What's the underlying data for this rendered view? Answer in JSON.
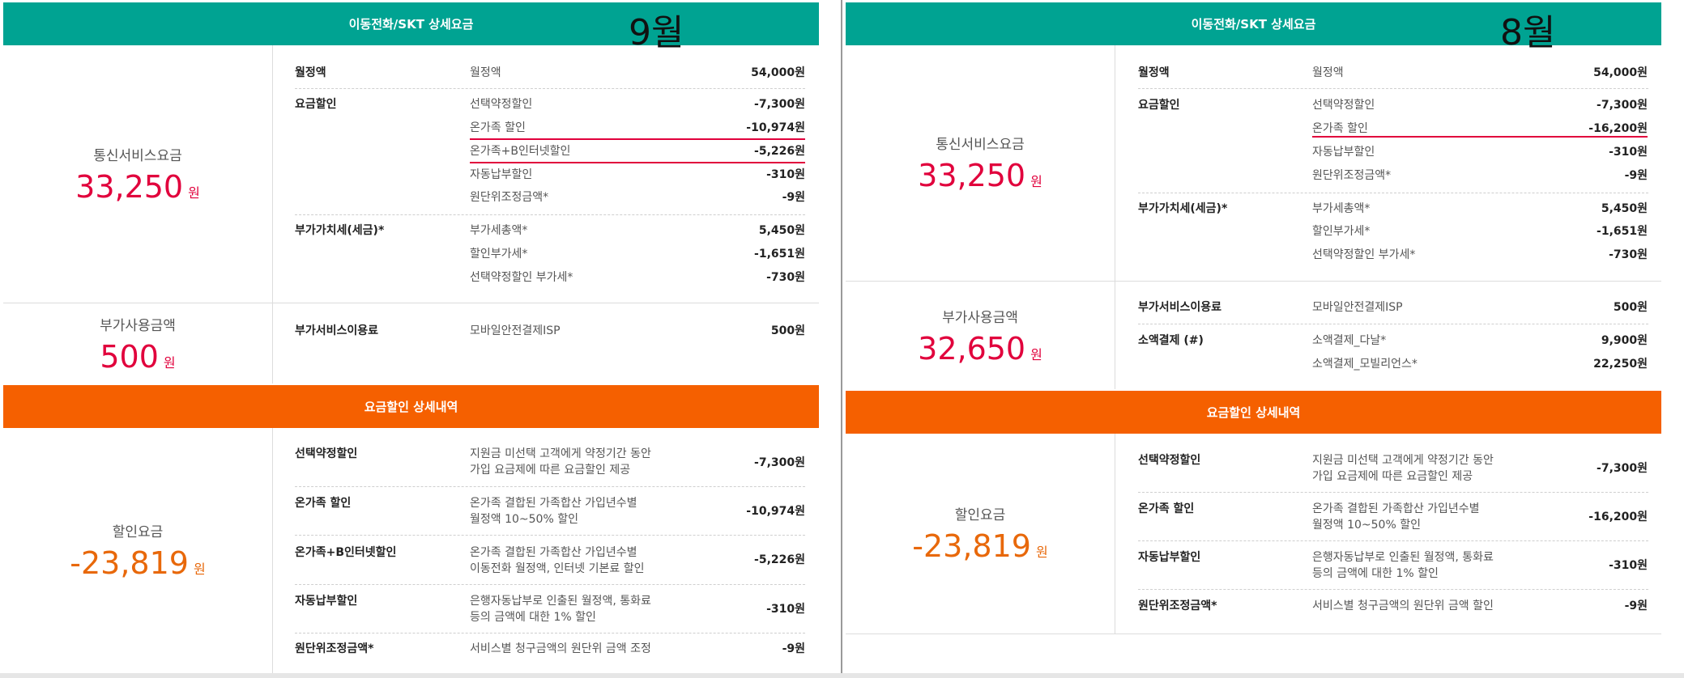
{
  "left": {
    "header": {
      "title": "이동전화/SKT 상세요금",
      "month": "9월"
    },
    "telecom": {
      "label": "통신서비스요금",
      "amount": "33,250",
      "unit": "원",
      "groups": [
        {
          "cat": "월정액",
          "items": [
            {
              "name": "월정액",
              "amount": "54,000원"
            }
          ]
        },
        {
          "cat": "요금할인",
          "items": [
            {
              "name": "선택약정할인",
              "amount": "-7,300원"
            },
            {
              "name": "온가족 할인",
              "amount": "-10,974원"
            },
            {
              "name": "온가족+B인터넷할인",
              "amount": "-5,226원"
            },
            {
              "name": "자동납부할인",
              "amount": "-310원"
            },
            {
              "name": "원단위조정금액*",
              "amount": "-9원"
            }
          ]
        },
        {
          "cat": "부가가치세(세금)*",
          "items": [
            {
              "name": "부가세총액*",
              "amount": "5,450원"
            },
            {
              "name": "할인부가세*",
              "amount": "-1,651원"
            },
            {
              "name": "선택약정할인 부가세*",
              "amount": "-730원"
            }
          ]
        }
      ]
    },
    "extra": {
      "label": "부가사용금액",
      "amount": "500",
      "unit": "원",
      "groups": [
        {
          "cat": "부가서비스이용료",
          "items": [
            {
              "name": "모바일안전결제ISP",
              "amount": "500원"
            }
          ]
        }
      ]
    },
    "discount_header": "요금할인 상세내역",
    "discount": {
      "label": "할인요금",
      "amount": "-23,819",
      "unit": "원",
      "rows": [
        {
          "cat": "선택약정할인",
          "desc1": "지원금 미선택 고객에게 약정기간 동안",
          "desc2": "가입 요금제에 따른 요금할인 제공",
          "amount": "-7,300원"
        },
        {
          "cat": "온가족 할인",
          "desc1": "온가족 결합된 가족합산 가입년수별",
          "desc2": "월정액 10~50% 할인",
          "amount": "-10,974원"
        },
        {
          "cat": "온가족+B인터넷할인",
          "desc1": "온가족 결합된 가족합산 가입년수별",
          "desc2": "이동전화 월정액, 인터넷 기본료 할인",
          "amount": "-5,226원"
        },
        {
          "cat": "자동납부할인",
          "desc1": "은행자동납부로 인출된 월정액, 통화료",
          "desc2": "등의 금액에 대한 1% 할인",
          "amount": "-310원"
        },
        {
          "cat": "원단위조정금액*",
          "desc1": "서비스별 청구금액의 원단위 금액 조정",
          "desc2": "",
          "amount": "-9원"
        }
      ]
    }
  },
  "right": {
    "header": {
      "title": "이동전화/SKT 상세요금",
      "month": "8월"
    },
    "telecom": {
      "label": "통신서비스요금",
      "amount": "33,250",
      "unit": "원",
      "groups": [
        {
          "cat": "월정액",
          "items": [
            {
              "name": "월정액",
              "amount": "54,000원"
            }
          ]
        },
        {
          "cat": "요금할인",
          "items": [
            {
              "name": "선택약정할인",
              "amount": "-7,300원"
            },
            {
              "name": "온가족 할인",
              "amount": "-16,200원"
            },
            {
              "name": "자동납부할인",
              "amount": "-310원"
            },
            {
              "name": "원단위조정금액*",
              "amount": "-9원"
            }
          ]
        },
        {
          "cat": "부가가치세(세금)*",
          "items": [
            {
              "name": "부가세총액*",
              "amount": "5,450원"
            },
            {
              "name": "할인부가세*",
              "amount": "-1,651원"
            },
            {
              "name": "선택약정할인 부가세*",
              "amount": "-730원"
            }
          ]
        }
      ]
    },
    "extra": {
      "label": "부가사용금액",
      "amount": "32,650",
      "unit": "원",
      "groups": [
        {
          "cat": "부가서비스이용료",
          "items": [
            {
              "name": "모바일안전결제ISP",
              "amount": "500원"
            }
          ]
        },
        {
          "cat": "소액결제 (#)",
          "items": [
            {
              "name": "소액결제_다날*",
              "amount": "9,900원"
            },
            {
              "name": "소액결제_모빌리언스*",
              "amount": "22,250원"
            }
          ]
        }
      ]
    },
    "discount_header": "요금할인 상세내역",
    "discount": {
      "label": "할인요금",
      "amount": "-23,819",
      "unit": "원",
      "rows": [
        {
          "cat": "선택약정할인",
          "desc1": "지원금 미선택 고객에게 약정기간 동안",
          "desc2": "가입 요금제에 따른 요금할인 제공",
          "amount": "-7,300원"
        },
        {
          "cat": "온가족 할인",
          "desc1": "온가족 결합된 가족합산 가입년수별",
          "desc2": "월정액 10~50% 할인",
          "amount": "-16,200원"
        },
        {
          "cat": "자동납부할인",
          "desc1": "은행자동납부로 인출된 월정액, 통화료",
          "desc2": "등의 금액에 대한 1% 할인",
          "amount": "-310원"
        },
        {
          "cat": "원단위조정금액*",
          "desc1": "서비스별 청구금액의 원단위 금액 할인",
          "desc2": "",
          "amount": "-9원"
        }
      ]
    }
  }
}
